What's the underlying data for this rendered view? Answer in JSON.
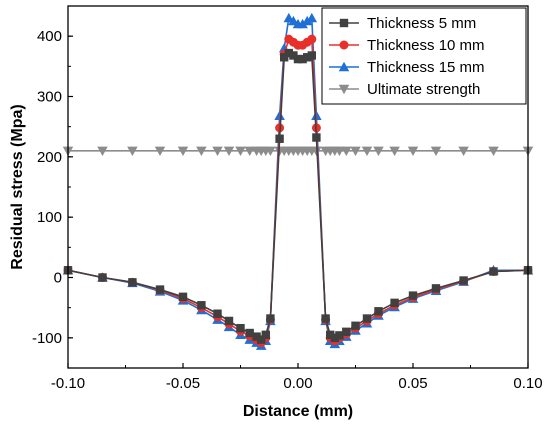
{
  "chart_data": {
    "type": "line",
    "title": "",
    "xlabel": "Distance (mm)",
    "ylabel": "Residual stress (Mpa)",
    "xlim": [
      -0.1,
      0.1
    ],
    "ylim": [
      -150,
      450
    ],
    "xticks": [
      -0.1,
      -0.05,
      0.0,
      0.05,
      0.1
    ],
    "xtick_labels": [
      "-0.10",
      "-0.05",
      "0.00",
      "0.05",
      "0.10"
    ],
    "yticks": [
      -100,
      0,
      100,
      200,
      300,
      400
    ],
    "ytick_labels": [
      "-100",
      "0",
      "100",
      "200",
      "300",
      "400"
    ],
    "grid": false,
    "legend_position": "top-right",
    "series": [
      {
        "name": "Thickness 5 mm",
        "color": "#404040",
        "marker": "square",
        "x": [
          -0.1,
          -0.085,
          -0.072,
          -0.06,
          -0.05,
          -0.042,
          -0.035,
          -0.03,
          -0.025,
          -0.021,
          -0.018,
          -0.016,
          -0.014,
          -0.012,
          -0.008,
          -0.006,
          -0.004,
          -0.002,
          0.0,
          0.002,
          0.004,
          0.006,
          0.008,
          0.012,
          0.014,
          0.016,
          0.018,
          0.021,
          0.025,
          0.03,
          0.035,
          0.042,
          0.05,
          0.06,
          0.072,
          0.085,
          0.1
        ],
        "y": [
          12,
          0,
          -8,
          -20,
          -32,
          -46,
          -60,
          -72,
          -84,
          -92,
          -98,
          -103,
          -95,
          -68,
          230,
          365,
          372,
          368,
          362,
          362,
          365,
          368,
          232,
          -68,
          -95,
          -100,
          -96,
          -90,
          -80,
          -68,
          -56,
          -42,
          -30,
          -18,
          -5,
          10,
          12
        ]
      },
      {
        "name": "Thickness 10 mm",
        "color": "#e8302a",
        "marker": "circle",
        "x": [
          -0.1,
          -0.085,
          -0.072,
          -0.06,
          -0.05,
          -0.042,
          -0.035,
          -0.03,
          -0.025,
          -0.021,
          -0.018,
          -0.016,
          -0.014,
          -0.012,
          -0.008,
          -0.006,
          -0.004,
          -0.002,
          0.0,
          0.002,
          0.004,
          0.006,
          0.008,
          0.012,
          0.014,
          0.016,
          0.018,
          0.021,
          0.025,
          0.03,
          0.035,
          0.042,
          0.05,
          0.06,
          0.072,
          0.085,
          0.1
        ],
        "y": [
          12,
          0,
          -8,
          -21,
          -35,
          -50,
          -65,
          -77,
          -89,
          -97,
          -103,
          -108,
          -100,
          -70,
          248,
          370,
          395,
          390,
          385,
          385,
          390,
          395,
          248,
          -70,
          -100,
          -105,
          -100,
          -94,
          -84,
          -72,
          -60,
          -46,
          -33,
          -20,
          -6,
          10,
          12
        ]
      },
      {
        "name": "Thickness 15 mm",
        "color": "#1f6fd6",
        "marker": "triangle-up",
        "x": [
          -0.1,
          -0.085,
          -0.072,
          -0.06,
          -0.05,
          -0.042,
          -0.035,
          -0.03,
          -0.025,
          -0.021,
          -0.018,
          -0.016,
          -0.014,
          -0.012,
          -0.008,
          -0.006,
          -0.004,
          -0.002,
          0.0,
          0.002,
          0.004,
          0.006,
          0.008,
          0.012,
          0.014,
          0.016,
          0.018,
          0.021,
          0.025,
          0.03,
          0.035,
          0.042,
          0.05,
          0.06,
          0.072,
          0.085,
          0.1
        ],
        "y": [
          12,
          0,
          -9,
          -23,
          -38,
          -54,
          -70,
          -82,
          -95,
          -103,
          -108,
          -113,
          -105,
          -72,
          268,
          380,
          430,
          425,
          420,
          420,
          425,
          430,
          268,
          -72,
          -105,
          -110,
          -105,
          -98,
          -88,
          -76,
          -63,
          -49,
          -35,
          -22,
          -7,
          12,
          12
        ]
      },
      {
        "name": "Ultimate strength",
        "color": "#8c8c8c",
        "marker": "triangle-down",
        "x": [
          -0.1,
          -0.085,
          -0.072,
          -0.06,
          -0.05,
          -0.042,
          -0.035,
          -0.03,
          -0.025,
          -0.021,
          -0.018,
          -0.016,
          -0.014,
          -0.012,
          -0.008,
          -0.006,
          -0.004,
          -0.002,
          0.0,
          0.002,
          0.004,
          0.006,
          0.008,
          0.012,
          0.014,
          0.016,
          0.018,
          0.021,
          0.025,
          0.03,
          0.035,
          0.042,
          0.05,
          0.06,
          0.072,
          0.085,
          0.1
        ],
        "y": [
          210,
          210,
          210,
          210,
          210,
          210,
          210,
          210,
          210,
          210,
          210,
          210,
          210,
          210,
          210,
          210,
          210,
          210,
          210,
          210,
          210,
          210,
          210,
          210,
          210,
          210,
          210,
          210,
          210,
          210,
          210,
          210,
          210,
          210,
          210,
          210,
          210
        ]
      }
    ]
  }
}
